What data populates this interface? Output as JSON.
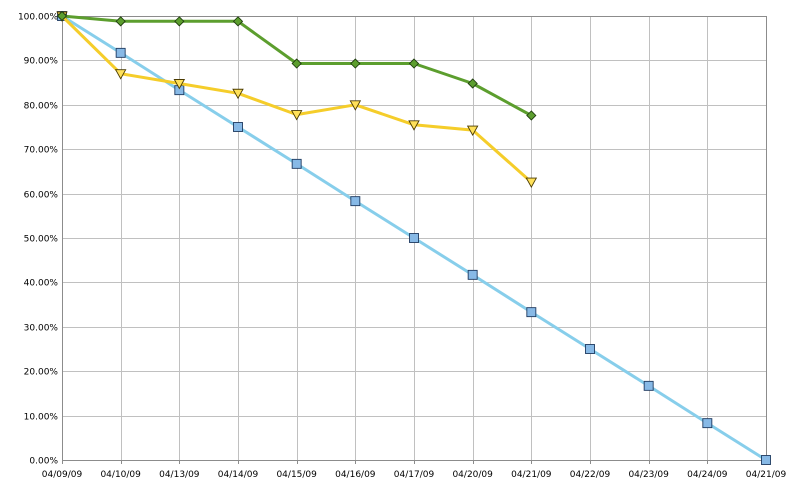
{
  "chart_data": {
    "type": "line",
    "categories": [
      "04/09/09",
      "04/10/09",
      "04/13/09",
      "04/14/09",
      "04/15/09",
      "04/16/09",
      "04/17/09",
      "04/20/09",
      "04/21/09",
      "04/22/09",
      "04/23/09",
      "04/24/09",
      "04/21/09"
    ],
    "ylim": [
      0,
      100
    ],
    "yticks": [
      0,
      10,
      20,
      30,
      40,
      50,
      60,
      70,
      80,
      90,
      100
    ],
    "ytick_labels": [
      "0.00%",
      "10.00%",
      "20.00%",
      "30.00%",
      "40.00%",
      "50.00%",
      "60.00%",
      "70.00%",
      "80.00%",
      "90.00%",
      "100.00%"
    ],
    "grid": true,
    "legend": "none",
    "series": [
      {
        "color": "#87ceeb",
        "marker": "square",
        "marker_fill": "#87b9e6",
        "values": [
          100,
          91.7,
          83.3,
          75.0,
          66.7,
          58.3,
          50.0,
          41.7,
          33.3,
          25.0,
          16.7,
          8.3,
          0.0
        ]
      },
      {
        "color": "#f5cd2a",
        "marker": "triangle-down",
        "marker_fill": "#ffe15a",
        "values": [
          100,
          87.0,
          84.8,
          82.6,
          77.8,
          80.0,
          75.5,
          74.3,
          62.6,
          null,
          null,
          null,
          null
        ]
      },
      {
        "color": "#5c9e2e",
        "marker": "diamond",
        "marker_fill": "#5c9e2e",
        "values": [
          100,
          98.8,
          98.8,
          98.8,
          89.3,
          89.3,
          89.3,
          84.8,
          77.6,
          null,
          null,
          null,
          null
        ]
      }
    ]
  }
}
